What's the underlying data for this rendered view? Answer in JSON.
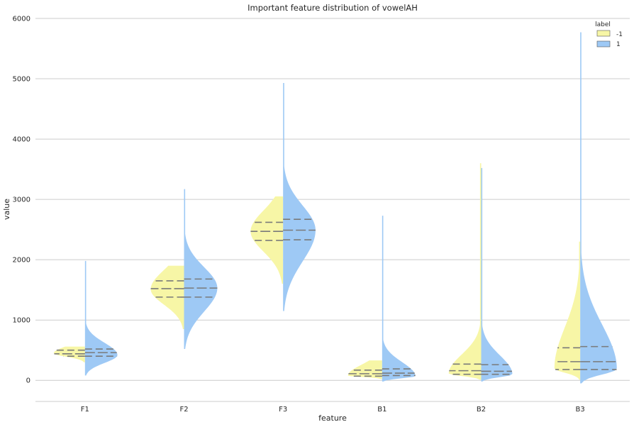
{
  "chart_data": {
    "type": "violin",
    "title": "Important feature distribution of vowelAH",
    "xlabel": "feature",
    "ylabel": "value",
    "ylim": [
      -350,
      6000
    ],
    "yticks": [
      0,
      1000,
      2000,
      3000,
      4000,
      5000,
      6000
    ],
    "grid": "horizontal",
    "split": true,
    "categories": [
      "F1",
      "F2",
      "F3",
      "B1",
      "B2",
      "B3"
    ],
    "legend": {
      "title": "label",
      "placement": "top-right",
      "entries": [
        {
          "label": "-1",
          "color": "#f7f6a6"
        },
        {
          "label": "1",
          "color": "#9ec9f5"
        }
      ]
    },
    "series": [
      {
        "name": "-1",
        "color": "#f7f6a6",
        "side": "left",
        "violins": [
          {
            "category": "F1",
            "min": 300,
            "max": 560,
            "peak": 450,
            "q1": 400,
            "median": 440,
            "q3": 500,
            "widthScale": 0.75
          },
          {
            "category": "F2",
            "min": 850,
            "max": 1900,
            "peak": 1510,
            "q1": 1380,
            "median": 1520,
            "q3": 1650,
            "widthScale": 0.8
          },
          {
            "category": "F3",
            "min": 1600,
            "max": 3050,
            "peak": 2470,
            "q1": 2320,
            "median": 2470,
            "q3": 2620,
            "widthScale": 0.78
          },
          {
            "category": "B1",
            "min": 20,
            "max": 330,
            "peak": 80,
            "q1": 70,
            "median": 110,
            "q3": 170,
            "widthScale": 0.82
          },
          {
            "category": "B2",
            "min": 10,
            "max": 3600,
            "peak": 110,
            "q1": 100,
            "median": 160,
            "q3": 270,
            "widthScale": 0.78
          },
          {
            "category": "B3",
            "min": 10,
            "max": 2300,
            "peak": 200,
            "q1": 180,
            "median": 310,
            "q3": 540,
            "widthScale": 0.62
          }
        ]
      },
      {
        "name": "1",
        "color": "#9ec9f5",
        "side": "right",
        "violins": [
          {
            "category": "F1",
            "min": 80,
            "max": 1980,
            "peak": 420,
            "q1": 400,
            "median": 460,
            "q3": 520,
            "widthScale": 0.78
          },
          {
            "category": "F2",
            "min": 520,
            "max": 3170,
            "peak": 1530,
            "q1": 1380,
            "median": 1530,
            "q3": 1680,
            "widthScale": 0.8
          },
          {
            "category": "F3",
            "min": 1150,
            "max": 4930,
            "peak": 2490,
            "q1": 2330,
            "median": 2490,
            "q3": 2670,
            "widthScale": 0.78
          },
          {
            "category": "B1",
            "min": -20,
            "max": 2730,
            "peak": 70,
            "q1": 80,
            "median": 120,
            "q3": 190,
            "widthScale": 0.8
          },
          {
            "category": "B2",
            "min": -20,
            "max": 3520,
            "peak": 100,
            "q1": 100,
            "median": 150,
            "q3": 260,
            "widthScale": 0.75
          },
          {
            "category": "B3",
            "min": -50,
            "max": 5770,
            "peak": 190,
            "q1": 180,
            "median": 310,
            "q3": 560,
            "widthScale": 0.88
          }
        ]
      }
    ]
  }
}
